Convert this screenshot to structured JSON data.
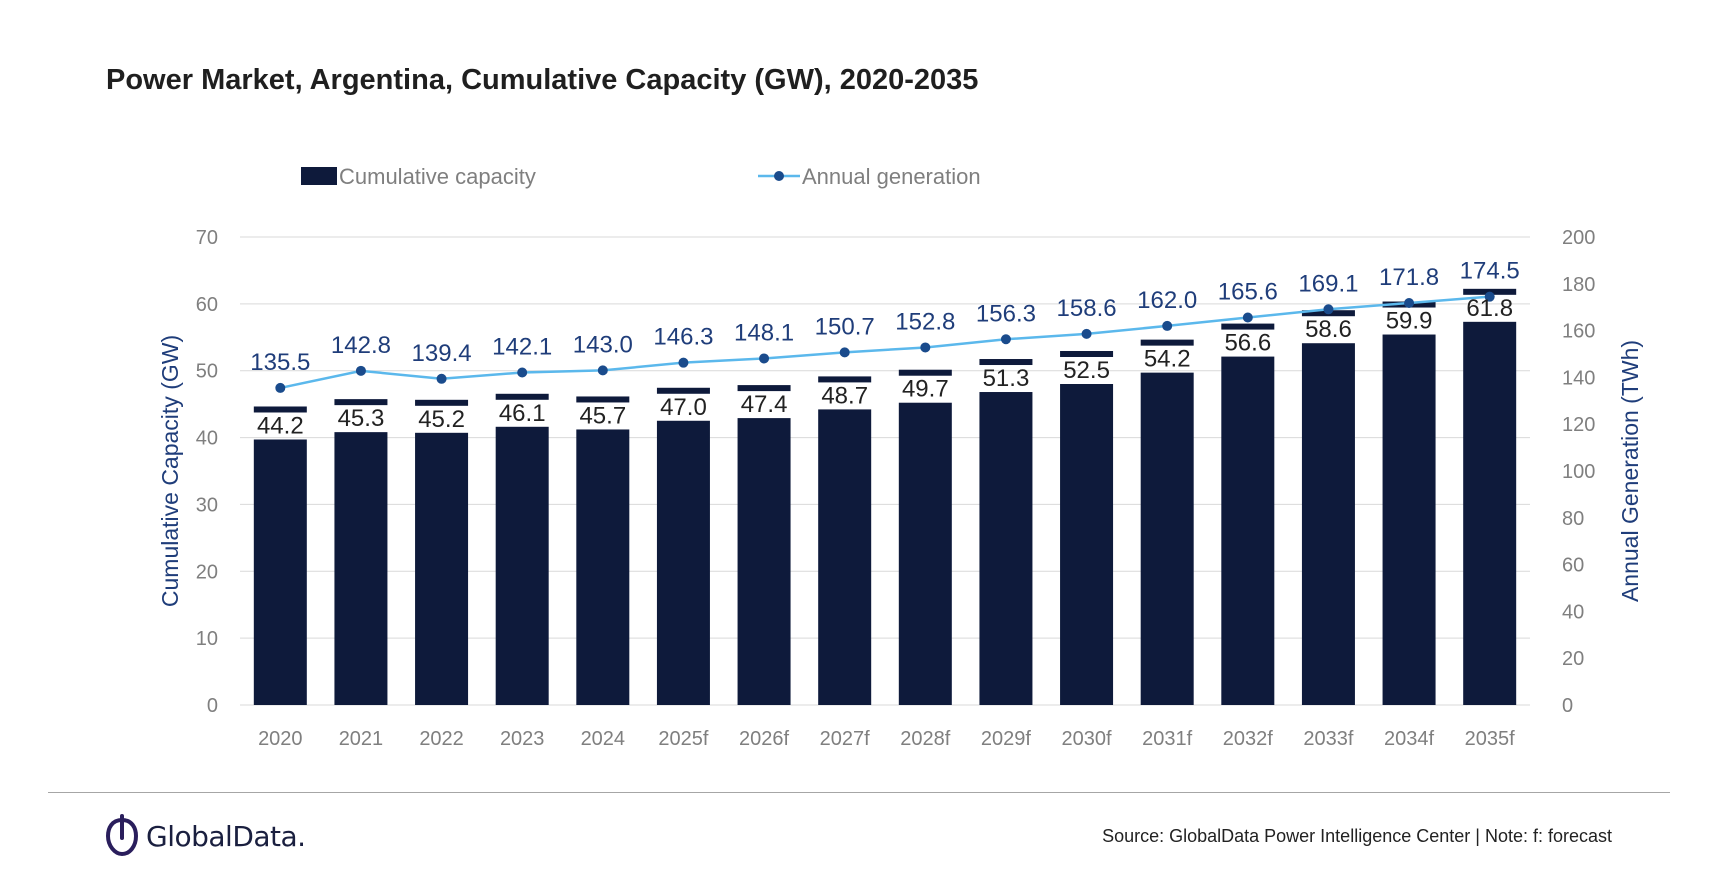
{
  "chart_data": {
    "type": "bar",
    "title": "Power Market, Argentina, Cumulative Capacity (GW), 2020-2035",
    "categories": [
      "2020",
      "2021",
      "2022",
      "2023",
      "2024",
      "2025f",
      "2026f",
      "2027f",
      "2028f",
      "2029f",
      "2030f",
      "2031f",
      "2032f",
      "2033f",
      "2034f",
      "2035f"
    ],
    "series": [
      {
        "name": "Cumulative capacity",
        "type": "bar",
        "axis": "left",
        "values": [
          44.2,
          45.3,
          45.2,
          46.1,
          45.7,
          47.0,
          47.4,
          48.7,
          49.7,
          51.3,
          52.5,
          54.2,
          56.6,
          58.6,
          59.9,
          61.8
        ]
      },
      {
        "name": "Annual generation",
        "type": "line",
        "axis": "right",
        "values": [
          135.5,
          142.8,
          139.4,
          142.1,
          143.0,
          146.3,
          148.1,
          150.7,
          152.8,
          156.3,
          158.6,
          162.0,
          165.6,
          169.1,
          171.8,
          174.5
        ]
      }
    ],
    "ylabel": "Cumulative Capacity (GW)",
    "ylabel_right": "Annual Generation (TWh)",
    "ylim": [
      0,
      70
    ],
    "ylim_right": [
      0,
      200
    ],
    "yticks": [
      0,
      10,
      20,
      30,
      40,
      50,
      60,
      70
    ],
    "yticks_right": [
      0,
      20,
      40,
      60,
      80,
      100,
      120,
      140,
      160,
      180,
      200
    ],
    "legend_position": "top-left",
    "grid": true,
    "colors": {
      "bar": "#0e1a3b",
      "line": "#5bb8ec",
      "marker": "#1a4b8c",
      "line_label": "#1f3d7a",
      "bar_label": "#222222",
      "axis_title": "#1f3d7a",
      "tick": "#7f7f7f",
      "grid": "#d9d9d9"
    }
  },
  "footer": {
    "logo_text": "GlobalData.",
    "source": "Source: GlobalData Power Intelligence Center | Note: f: forecast"
  }
}
